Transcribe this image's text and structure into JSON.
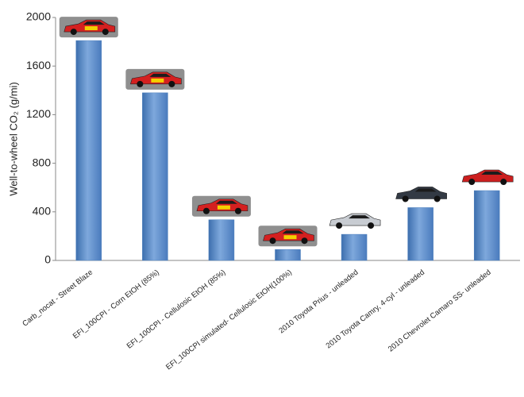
{
  "chart_data": {
    "type": "bar",
    "y_label": "Well-to-wheel CO₂ (g/mi)",
    "categories": [
      "Carb_nocat - Street Blaze",
      "EFI_100CPI - Corn EtOH (85%)",
      "EFI_100CPI - Cellulosic EtOH (85%)",
      "EFI_100CPI simulated- Cellulosic EtOH(100%)",
      "2010 Toyota Prius - unleaded",
      "2010 Toyota Camry, 4-cyl - unleaded",
      "2010 Chevrolet Camaro SS- unleaded"
    ],
    "values": [
      1810,
      1380,
      335,
      90,
      215,
      435,
      575
    ],
    "color": "#4f81bd",
    "ylim": [
      0,
      2000
    ],
    "yticks": [
      0,
      400,
      800,
      1200,
      1600,
      2000
    ],
    "grid": false
  }
}
